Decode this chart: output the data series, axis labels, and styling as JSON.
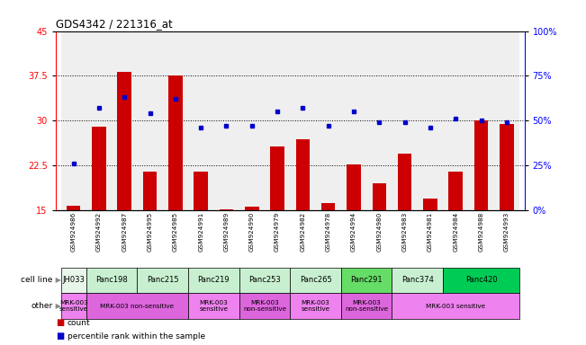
{
  "title": "GDS4342 / 221316_at",
  "samples": [
    "GSM924986",
    "GSM924992",
    "GSM924987",
    "GSM924995",
    "GSM924985",
    "GSM924991",
    "GSM924989",
    "GSM924990",
    "GSM924979",
    "GSM924982",
    "GSM924978",
    "GSM924994",
    "GSM924980",
    "GSM924983",
    "GSM924981",
    "GSM924984",
    "GSM924988",
    "GSM924993"
  ],
  "counts": [
    15.8,
    29.0,
    38.2,
    21.5,
    37.5,
    21.5,
    15.2,
    15.7,
    25.7,
    26.9,
    16.3,
    22.7,
    19.5,
    24.5,
    17.0,
    21.5,
    30.0,
    29.5
  ],
  "percentile_ranks": [
    26,
    57,
    63,
    54,
    62,
    46,
    47,
    47,
    55,
    57,
    47,
    55,
    49,
    49,
    46,
    51,
    50,
    49
  ],
  "cell_lines": [
    {
      "name": "JH033",
      "start": 0,
      "end": 1,
      "color": "#e8f5e9"
    },
    {
      "name": "Panc198",
      "start": 1,
      "end": 3,
      "color": "#c8f0d0"
    },
    {
      "name": "Panc215",
      "start": 3,
      "end": 5,
      "color": "#c8f0d0"
    },
    {
      "name": "Panc219",
      "start": 5,
      "end": 7,
      "color": "#c8f0d0"
    },
    {
      "name": "Panc253",
      "start": 7,
      "end": 9,
      "color": "#c8f0d0"
    },
    {
      "name": "Panc265",
      "start": 9,
      "end": 11,
      "color": "#c8f0d0"
    },
    {
      "name": "Panc291",
      "start": 11,
      "end": 13,
      "color": "#66dd66"
    },
    {
      "name": "Panc374",
      "start": 13,
      "end": 15,
      "color": "#c8f0d0"
    },
    {
      "name": "Panc420",
      "start": 15,
      "end": 18,
      "color": "#00cc55"
    }
  ],
  "other_labels": [
    {
      "text": "MRK-003\nsensitive",
      "start": 0,
      "end": 1,
      "color": "#ee82ee"
    },
    {
      "text": "MRK-003 non-sensitive",
      "start": 1,
      "end": 5,
      "color": "#dd66dd"
    },
    {
      "text": "MRK-003\nsensitive",
      "start": 5,
      "end": 7,
      "color": "#ee82ee"
    },
    {
      "text": "MRK-003\nnon-sensitive",
      "start": 7,
      "end": 9,
      "color": "#dd66dd"
    },
    {
      "text": "MRK-003\nsensitive",
      "start": 9,
      "end": 11,
      "color": "#ee82ee"
    },
    {
      "text": "MRK-003\nnon-sensitive",
      "start": 11,
      "end": 13,
      "color": "#dd66dd"
    },
    {
      "text": "MRK-003 sensitive",
      "start": 13,
      "end": 18,
      "color": "#ee82ee"
    }
  ],
  "ylim_left": [
    15,
    45
  ],
  "ylim_right": [
    0,
    100
  ],
  "yticks_left": [
    15,
    22.5,
    30,
    37.5,
    45
  ],
  "yticks_right": [
    0,
    25,
    50,
    75,
    100
  ],
  "bar_color": "#cc0000",
  "dot_color": "#0000cc",
  "grid_color": "#000000",
  "sample_bg_color": "#cccccc"
}
